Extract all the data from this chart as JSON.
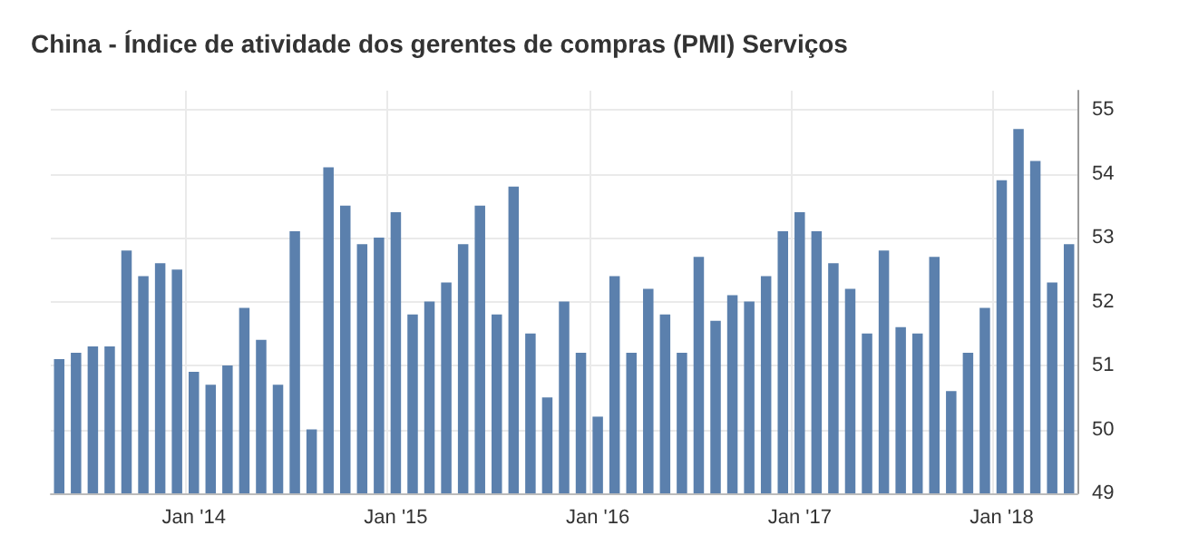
{
  "chart_data": {
    "type": "bar",
    "title": "China - Índice de atividade dos gerentes de compras (PMI) Serviços",
    "categories": [
      null,
      null,
      null,
      null,
      null,
      null,
      null,
      null,
      "Jan '14",
      null,
      null,
      null,
      null,
      null,
      null,
      null,
      null,
      null,
      null,
      null,
      "Jan '15",
      null,
      null,
      null,
      null,
      null,
      null,
      null,
      null,
      null,
      null,
      null,
      "Jan '16",
      null,
      null,
      null,
      null,
      null,
      null,
      null,
      null,
      null,
      null,
      null,
      "Jan '17",
      null,
      null,
      null,
      null,
      null,
      null,
      null,
      null,
      null,
      null,
      null,
      "Jan '18",
      null,
      null,
      null,
      null
    ],
    "values": [
      51.1,
      51.2,
      51.3,
      51.3,
      52.8,
      52.4,
      52.6,
      52.5,
      50.9,
      50.7,
      51.0,
      51.9,
      51.4,
      50.7,
      53.1,
      50.0,
      54.1,
      53.5,
      52.9,
      53.0,
      53.4,
      51.8,
      52.0,
      52.3,
      52.9,
      53.5,
      51.8,
      53.8,
      51.5,
      50.5,
      52.0,
      51.2,
      50.2,
      52.4,
      51.2,
      52.2,
      51.8,
      51.2,
      52.7,
      51.7,
      52.1,
      52.0,
      52.4,
      53.1,
      53.4,
      53.1,
      52.6,
      52.2,
      51.5,
      52.8,
      51.6,
      51.5,
      52.7,
      50.6,
      51.2,
      51.9,
      53.9,
      54.7,
      54.2,
      52.3,
      52.9
    ],
    "color": "#5b80ad",
    "ylim": [
      49,
      55.3
    ],
    "yticks": [
      49,
      50,
      51,
      52,
      53,
      54,
      55
    ],
    "grid": true
  }
}
